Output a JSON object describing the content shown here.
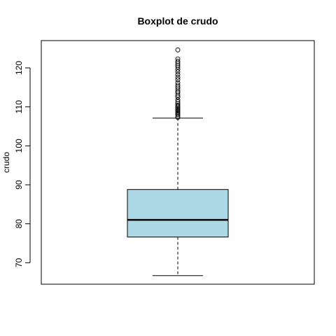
{
  "chart_data": {
    "type": "boxplot",
    "title": "Boxplot de crudo",
    "xlabel": "",
    "ylabel": "crudo",
    "ylim": [
      64.5,
      127
    ],
    "y_ticks": [
      70,
      80,
      90,
      100,
      110,
      120
    ],
    "y_tick_labels": [
      "70",
      "80",
      "90",
      "100",
      "110",
      "120"
    ],
    "box": {
      "min": 66.7,
      "q1": 76.6,
      "median": 81.0,
      "q3": 88.8,
      "max": 107.1,
      "fill": "#add8e6"
    },
    "outliers": [
      107.3,
      107.6,
      108.0,
      108.3,
      108.6,
      108.9,
      109.2,
      109.5,
      109.8,
      110.1,
      110.4,
      110.8,
      111.3,
      111.8,
      112.5,
      113.0,
      113.6,
      114.0,
      114.6,
      115.1,
      115.6,
      116.2,
      117.0,
      117.6,
      118.3,
      119.0,
      119.6,
      120.2,
      120.7,
      121.2,
      121.7,
      122.3,
      124.6
    ]
  }
}
